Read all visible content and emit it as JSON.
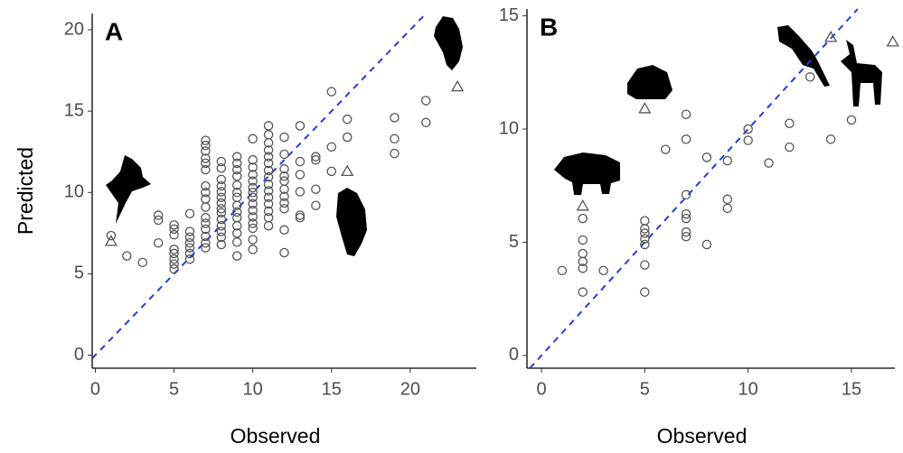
{
  "chart_data": [
    {
      "type": "scatter",
      "panel_label": "A",
      "xlabel": "Observed",
      "ylabel": "Predicted",
      "xlim": [
        -0.2,
        24.2
      ],
      "ylim": [
        -0.8,
        21
      ],
      "xticks": [
        0,
        5,
        10,
        15,
        20
      ],
      "yticks": [
        0,
        5,
        10,
        15,
        20
      ],
      "identity_line": {
        "color": "#1f3fdb",
        "dashed": true
      },
      "series": [
        {
          "marker": "circle",
          "color": "#555555",
          "x": [
            1,
            2,
            3,
            4,
            4,
            4,
            5,
            5,
            5,
            5,
            5,
            5,
            5,
            5,
            6,
            6,
            6,
            6,
            6,
            6,
            6,
            7,
            7,
            7,
            7,
            7,
            7,
            7,
            7,
            7,
            7,
            7,
            7,
            7,
            7,
            7,
            7,
            8,
            8,
            8,
            8,
            8,
            8,
            8,
            8,
            8,
            8,
            8,
            8,
            8,
            8,
            9,
            9,
            9,
            9,
            9,
            9,
            9,
            9,
            9,
            9,
            9,
            9,
            9,
            9,
            10,
            10,
            10,
            10,
            10,
            10,
            10,
            10,
            10,
            10,
            10,
            10,
            10,
            10,
            10,
            11,
            11,
            11,
            11,
            11,
            11,
            11,
            11,
            11,
            11,
            11,
            11,
            11,
            11,
            11,
            12,
            12,
            12,
            12,
            12,
            12,
            12,
            12,
            12,
            12,
            12,
            13,
            13,
            13,
            13,
            13,
            13,
            14,
            14,
            14,
            14,
            15,
            15,
            15,
            16,
            16,
            19,
            19,
            19,
            21,
            21
          ],
          "values": [
            7.35,
            6.1,
            5.7,
            8.6,
            8.3,
            6.9,
            8.0,
            7.75,
            7.4,
            6.5,
            6.25,
            5.9,
            5.6,
            5.3,
            8.7,
            7.6,
            7.25,
            6.9,
            6.6,
            6.25,
            5.9,
            13.2,
            12.9,
            12.55,
            12.1,
            11.8,
            11.4,
            10.4,
            10.0,
            9.6,
            9.1,
            8.45,
            8.1,
            7.75,
            7.3,
            6.9,
            6.6,
            11.9,
            11.5,
            10.8,
            10.4,
            10.05,
            9.7,
            9.35,
            9.0,
            8.75,
            8.35,
            7.95,
            7.6,
            7.25,
            6.8,
            12.2,
            11.8,
            11.4,
            11.0,
            10.45,
            10.0,
            9.7,
            9.2,
            8.8,
            8.45,
            7.95,
            7.5,
            6.95,
            6.1,
            13.3,
            12.0,
            11.55,
            11.1,
            10.7,
            10.3,
            10.0,
            9.7,
            9.3,
            8.9,
            8.5,
            8.1,
            7.8,
            7.1,
            6.5,
            14.1,
            13.55,
            13.05,
            12.6,
            12.2,
            11.8,
            11.35,
            10.95,
            10.5,
            10.1,
            9.7,
            9.3,
            8.85,
            8.45,
            7.95,
            13.4,
            12.35,
            11.45,
            11.0,
            10.7,
            10.2,
            9.75,
            9.35,
            9.0,
            7.7,
            6.3,
            14.1,
            11.9,
            11.1,
            10.05,
            8.6,
            8.45,
            12.2,
            12.0,
            10.2,
            9.2,
            16.2,
            12.8,
            11.3,
            14.5,
            13.4,
            14.6,
            13.3,
            12.4,
            15.65,
            14.3
          ]
        },
        {
          "marker": "triangle",
          "color": "#555555",
          "x": [
            1,
            16,
            23
          ],
          "values": [
            7.0,
            11.3,
            16.5
          ]
        }
      ]
    },
    {
      "type": "scatter",
      "panel_label": "B",
      "xlabel": "Observed",
      "xlim": [
        -0.7,
        17.1
      ],
      "ylim": [
        -0.56,
        15.3
      ],
      "xticks": [
        0,
        5,
        10,
        15
      ],
      "yticks": [
        0,
        5,
        10,
        15
      ],
      "identity_line": {
        "color": "#1f3fdb",
        "dashed": true
      },
      "series": [
        {
          "marker": "circle",
          "color": "#555555",
          "x": [
            1,
            2,
            2,
            2,
            2,
            2,
            2,
            3,
            5,
            5,
            5,
            5,
            5,
            5,
            5,
            6,
            7,
            7,
            7,
            7,
            7,
            7,
            7,
            8,
            8,
            9,
            9,
            9,
            10,
            10,
            11,
            12,
            12,
            13,
            14,
            15
          ],
          "values": [
            3.75,
            6.05,
            5.1,
            4.5,
            4.15,
            3.85,
            2.8,
            3.75,
            5.95,
            5.6,
            5.4,
            5.15,
            4.9,
            4.0,
            2.8,
            9.1,
            10.65,
            9.55,
            7.1,
            6.25,
            6.05,
            5.45,
            5.25,
            8.75,
            4.9,
            8.6,
            6.9,
            6.5,
            10.0,
            9.5,
            8.5,
            10.25,
            9.2,
            12.3,
            9.55,
            10.4
          ]
        },
        {
          "marker": "triangle",
          "color": "#555555",
          "x": [
            2,
            5,
            14,
            17
          ],
          "values": [
            6.6,
            10.9,
            14.05,
            13.85
          ]
        }
      ]
    }
  ]
}
